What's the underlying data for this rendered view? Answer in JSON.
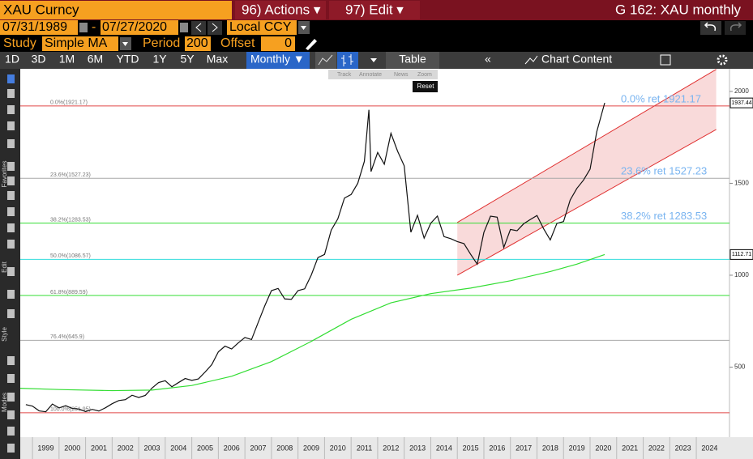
{
  "header": {
    "security": "XAU Curncy",
    "actions": "96) Actions ▾",
    "edit": "97) Edit ▾",
    "graph": "G 162: XAU monthly"
  },
  "controls": {
    "start_date": "07/31/1989",
    "separator": "-",
    "end_date": "07/27/2020",
    "currency": "Local CCY",
    "study_label": "Study",
    "study": "Simple MA",
    "period_label": "Period",
    "period": 200,
    "offset_label": "Offset",
    "offset": 0
  },
  "toolbar": {
    "ranges": [
      "1D",
      "3D",
      "1M",
      "6M",
      "YTD",
      "1Y",
      "5Y",
      "Max"
    ],
    "frequency": "Monthly ▼",
    "table": "Table",
    "chart_content": "Chart Content"
  },
  "overlay": {
    "tools": [
      "Track",
      "Annotate",
      "News",
      "Zoom"
    ],
    "reset": "Reset"
  },
  "sidebar": {
    "labels": [
      "Favorites",
      "Edit",
      "Style",
      "Modes"
    ]
  },
  "chart_data": {
    "type": "line",
    "xlim": [
      1998.54,
      2025.25
    ],
    "xticks": [
      1999,
      2000,
      2001,
      2002,
      2003,
      2004,
      2005,
      2006,
      2007,
      2008,
      2009,
      2010,
      2011,
      2012,
      2013,
      2014,
      2015,
      2016,
      2017,
      2018,
      2019,
      2020,
      2021,
      2022,
      2023,
      2024
    ],
    "ylim": [
      119,
      2123
    ],
    "yticks": [
      500,
      1000,
      1500,
      2000
    ],
    "series": [
      {
        "color": "#111111",
        "x": [
          1998.75,
          1999.0,
          1999.25,
          1999.5,
          1999.75,
          2000.0,
          2000.25,
          2000.5,
          2000.75,
          2001.0,
          2001.25,
          2001.5,
          2001.75,
          2002.0,
          2002.25,
          2002.5,
          2002.75,
          2003.0,
          2003.25,
          2003.5,
          2003.75,
          2004.0,
          2004.25,
          2004.5,
          2004.75,
          2005.0,
          2005.25,
          2005.5,
          2005.75,
          2006.0,
          2006.25,
          2006.5,
          2006.75,
          2007.0,
          2007.25,
          2007.5,
          2007.75,
          2008.0,
          2008.25,
          2008.5,
          2008.75,
          2009.0,
          2009.25,
          2009.5,
          2009.75,
          2010.0,
          2010.25,
          2010.5,
          2010.75,
          2011.0,
          2011.25,
          2011.5,
          2011.67,
          2011.75,
          2012.0,
          2012.25,
          2012.5,
          2012.75,
          2013.0,
          2013.25,
          2013.5,
          2013.75,
          2014.0,
          2014.25,
          2014.5,
          2014.75,
          2015.0,
          2015.25,
          2015.5,
          2015.75,
          2016.0,
          2016.25,
          2016.5,
          2016.75,
          2017.0,
          2017.25,
          2017.5,
          2017.75,
          2018.0,
          2018.25,
          2018.5,
          2018.75,
          2019.0,
          2019.25,
          2019.5,
          2019.75,
          2020.0,
          2020.25,
          2020.55
        ],
        "values": [
          296,
          288,
          262,
          257,
          299,
          278,
          290,
          275,
          272,
          258,
          270,
          261,
          279,
          301,
          318,
          323,
          347,
          335,
          346,
          386,
          416,
          426,
          393,
          416,
          438,
          428,
          436,
          473,
          513,
          583,
          614,
          599,
          632,
          661,
          650,
          743,
          834,
          916,
          928,
          871,
          869,
          916,
          926,
          1001,
          1096,
          1113,
          1245,
          1307,
          1420,
          1439,
          1500,
          1620,
          1900,
          1564,
          1668,
          1604,
          1772,
          1675,
          1595,
          1234,
          1326,
          1202,
          1283,
          1322,
          1210,
          1199,
          1183,
          1172,
          1114,
          1060,
          1233,
          1321,
          1316,
          1151,
          1249,
          1242,
          1280,
          1303,
          1325,
          1253,
          1192,
          1282,
          1292,
          1409,
          1472,
          1517,
          1577,
          1780,
          1937.44
        ]
      },
      {
        "color": "#33dd33",
        "x": [
          1998.54,
          2000.0,
          2002.0,
          2003.5,
          2005.0,
          2006.5,
          2008.0,
          2009.5,
          2011.0,
          2012.5,
          2014.0,
          2015.5,
          2017.0,
          2018.5,
          2019.5,
          2020.55
        ],
        "values": [
          385,
          378,
          372,
          375,
          400,
          450,
          530,
          640,
          760,
          850,
          900,
          930,
          970,
          1020,
          1060,
          1112.71
        ]
      }
    ],
    "fib_levels": [
      {
        "label": "0.0%(1921.17)",
        "value": 1921.17,
        "color": "#e04848"
      },
      {
        "label": "23.6%(1527.23)",
        "value": 1527.23,
        "color": "#a8a8a8"
      },
      {
        "label": "38.2%(1283.53)",
        "value": 1283.53,
        "color": "#33dd33"
      },
      {
        "label": "50.0%(1086.57)",
        "value": 1086.57,
        "color": "#33dddd"
      },
      {
        "label": "61.8%(889.59)",
        "value": 889.59,
        "color": "#33dd33"
      },
      {
        "label": "76.4%(645.9)",
        "value": 645.9,
        "color": "#a8a8a8"
      },
      {
        "label": "100.0%(251.95)",
        "value": 251.95,
        "color": "#e04848"
      }
    ],
    "ret_labels": [
      {
        "text": "0.0% ret 1921.17",
        "value": 1921.17
      },
      {
        "text": "23.6% ret 1527.23",
        "value": 1527.23
      },
      {
        "text": "38.2% ret 1283.53",
        "value": 1283.53
      }
    ],
    "channel": {
      "x": [
        2015.0,
        2024.75
      ],
      "upper": [
        1287,
        2120
      ],
      "lower": [
        1000,
        1793
      ],
      "color": "#e03030"
    },
    "price_tags": [
      1937.44,
      1112.71
    ]
  }
}
